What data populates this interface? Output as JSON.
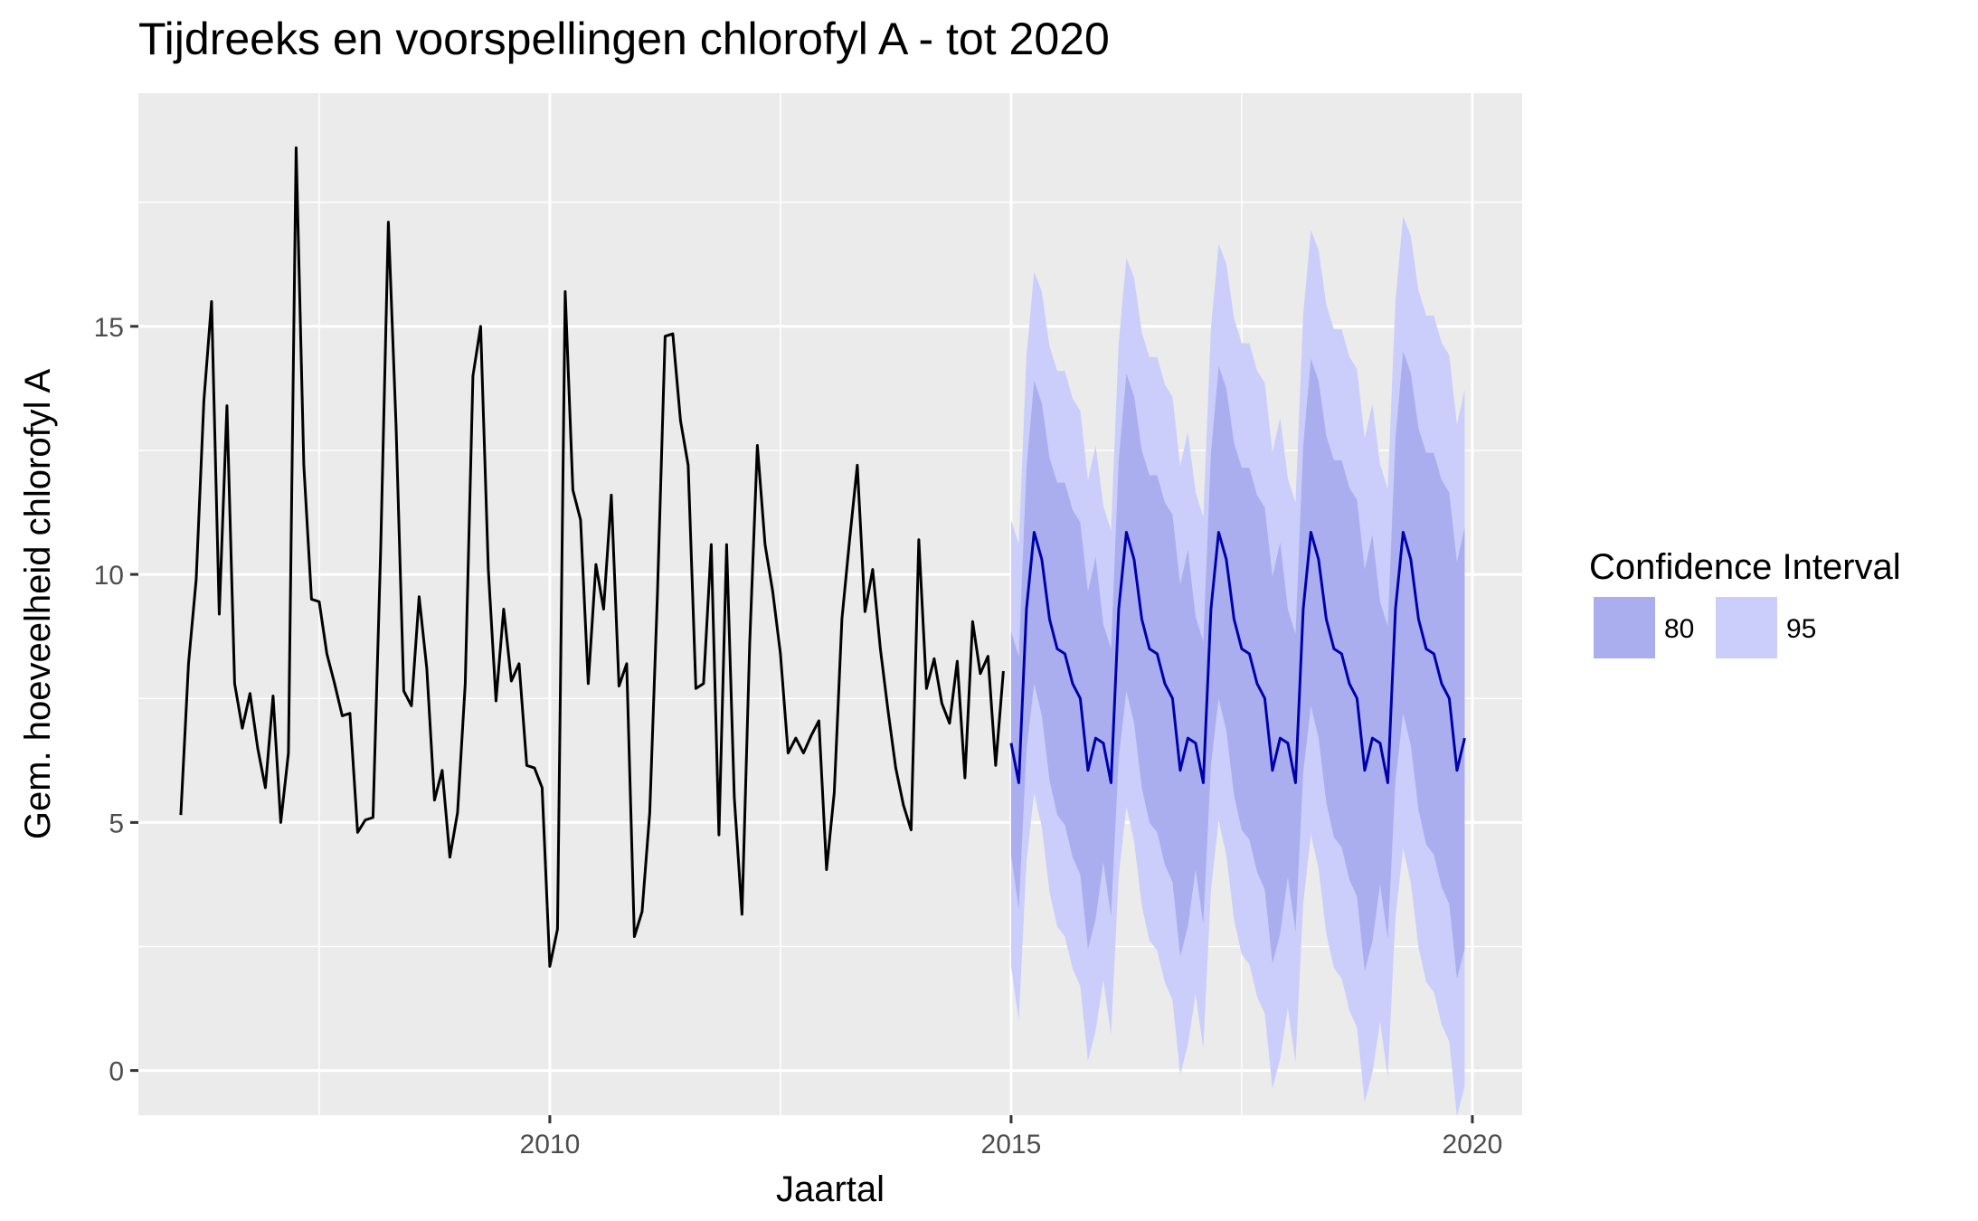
{
  "chart_data": {
    "type": "line",
    "title": "Tijdreeks en voorspellingen chlorofyl A - tot 2020",
    "xlabel": "Jaartal",
    "ylabel": "Gem. hoeveelheid chlorofyl A",
    "xlim": [
      2005.54,
      2020.54
    ],
    "ylim": [
      -0.9,
      19.7
    ],
    "x_ticks": [
      2010,
      2015,
      2020
    ],
    "x_tick_labels": [
      "2010",
      "2015",
      "2020"
    ],
    "y_ticks": [
      0,
      5,
      10,
      15
    ],
    "y_tick_labels": [
      "0",
      "5",
      "10",
      "15"
    ],
    "grid": true,
    "legend": {
      "title": "Confidence Interval",
      "position": "right",
      "entries": [
        {
          "label": "80",
          "color": "#aaaeef"
        },
        {
          "label": "95",
          "color": "#cbcefa"
        }
      ]
    },
    "colors": {
      "panel": "#ebebeb",
      "grid": "#ffffff",
      "observed": "#000000",
      "forecast": "#0000aa",
      "ci80": "#aaaeef",
      "ci95": "#cbcefa"
    },
    "observed": {
      "start": 2006.0,
      "step": 0.08333,
      "values": [
        5.15,
        8.2,
        9.9,
        13.5,
        15.5,
        9.2,
        13.4,
        7.8,
        6.9,
        7.6,
        6.5,
        5.7,
        7.55,
        5.0,
        6.4,
        18.6,
        12.2,
        9.5,
        9.45,
        8.4,
        7.8,
        7.15,
        7.2,
        4.8,
        5.05,
        5.1,
        10.5,
        17.1,
        13.0,
        7.65,
        7.35,
        9.55,
        8.1,
        5.45,
        6.05,
        4.3,
        5.2,
        7.8,
        14.0,
        15.0,
        10.1,
        7.45,
        9.3,
        7.85,
        8.2,
        6.15,
        6.1,
        5.7,
        2.1,
        2.85,
        15.7,
        11.7,
        11.1,
        7.8,
        10.2,
        9.3,
        11.6,
        7.75,
        8.2,
        2.7,
        3.2,
        5.2,
        9.6,
        14.8,
        14.85,
        13.1,
        12.2,
        7.7,
        7.8,
        10.6,
        4.75,
        10.6,
        5.5,
        3.15,
        8.6,
        12.6,
        10.6,
        9.65,
        8.4,
        6.4,
        6.7,
        6.4,
        6.75,
        7.05,
        4.05,
        5.6,
        9.1,
        10.7,
        12.2,
        9.25,
        10.1,
        8.5,
        7.25,
        6.1,
        5.35,
        4.85,
        10.7,
        7.7,
        8.3,
        7.4,
        7.0,
        8.25,
        5.9,
        9.05,
        8.0,
        8.35,
        6.15,
        8.05
      ]
    },
    "forecast": {
      "start": 2015.0,
      "step": 0.08333,
      "mean": [
        6.6,
        5.8,
        9.3,
        10.85,
        10.3,
        9.1,
        8.5,
        8.4,
        7.8,
        7.5,
        6.05,
        6.7
      ],
      "ci80_halfwidth": [
        2.2,
        2.5,
        2.8,
        3.0,
        3.1,
        3.2,
        3.3,
        3.4,
        3.45,
        3.5,
        3.55,
        3.6
      ],
      "ci95_halfwidth": [
        4.5,
        4.8,
        5.1,
        5.25,
        5.4,
        5.5,
        5.6,
        5.7,
        5.75,
        5.8,
        5.85,
        5.9
      ],
      "growth_per_year": [
        0.05,
        0.15,
        0.14
      ],
      "years": 5
    }
  }
}
